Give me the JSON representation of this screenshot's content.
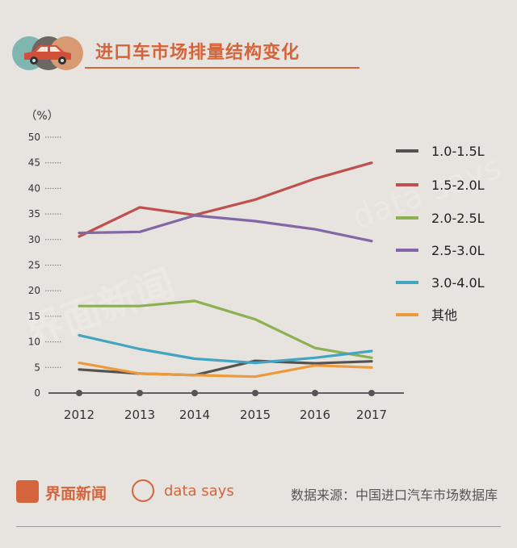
{
  "title": "进口车市场排量结构变化",
  "chart_data": {
    "type": "line",
    "title": "进口车市场排量结构变化",
    "ylabel": "（%）",
    "xlabel": "",
    "ylim": [
      0,
      50
    ],
    "yticks": [
      0,
      5,
      10,
      15,
      20,
      25,
      30,
      35,
      40,
      45,
      50
    ],
    "categories": [
      "2012",
      "2013",
      "2014",
      "2015",
      "2016",
      "2017"
    ],
    "series": [
      {
        "name": "1.0-1.5L",
        "color": "#555350",
        "values": [
          4.6,
          3.8,
          3.5,
          6.3,
          5.8,
          6.2
        ]
      },
      {
        "name": "1.5-2.0L",
        "color": "#c0504d",
        "values": [
          30.6,
          36.3,
          34.8,
          37.8,
          41.9,
          45.0
        ]
      },
      {
        "name": "2.0-2.5L",
        "color": "#8db050",
        "values": [
          17.0,
          17.0,
          18.0,
          14.4,
          8.8,
          6.9
        ]
      },
      {
        "name": "2.5-3.0L",
        "color": "#8266a6",
        "values": [
          31.3,
          31.5,
          34.7,
          33.6,
          32.0,
          29.7
        ]
      },
      {
        "name": "3.0-4.0L",
        "color": "#41a5c1",
        "values": [
          11.3,
          8.6,
          6.7,
          5.9,
          6.9,
          8.2
        ]
      },
      {
        "name": "其他",
        "color": "#ee9a3a",
        "values": [
          5.9,
          3.8,
          3.5,
          3.2,
          5.4,
          5.0
        ]
      }
    ],
    "legend_position": "right"
  },
  "watermarks": [
    "界面新闻",
    "data says"
  ],
  "footer": {
    "brand": "界面新闻",
    "datasays": "data says",
    "source": "数据来源：中国进口汽车市场数据库"
  },
  "colors": {
    "accent": "#d4643b",
    "background": "#e7e3de"
  }
}
